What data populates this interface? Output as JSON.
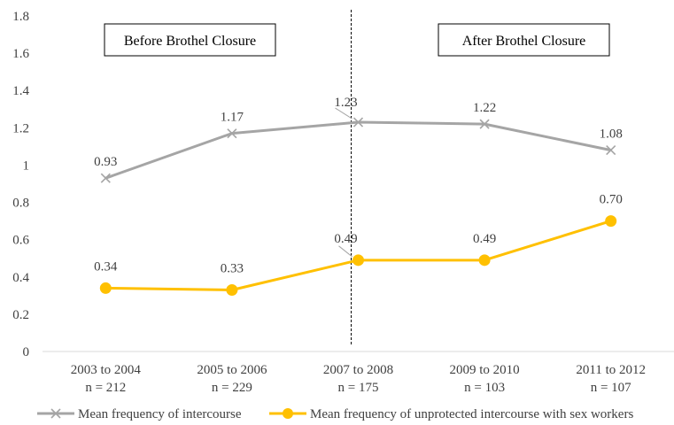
{
  "chart_data": {
    "type": "line",
    "categories": [
      [
        "2003 to 2004",
        "n = 212"
      ],
      [
        "2005 to 2006",
        "n = 229"
      ],
      [
        "2007 to 2008",
        "n = 175"
      ],
      [
        "2009 to 2010",
        "n = 103"
      ],
      [
        "2011 to 2012",
        "n = 107"
      ]
    ],
    "series": [
      {
        "name": "Mean frequency of intercourse",
        "values": [
          0.93,
          1.17,
          1.23,
          1.22,
          1.08
        ],
        "labels": [
          "0.93",
          "1.17",
          "1.23",
          "1.22",
          "1.08"
        ],
        "color": "#a5a5a5",
        "marker": "cross"
      },
      {
        "name": "Mean frequency of unprotected intercourse with sex workers",
        "values": [
          0.34,
          0.33,
          0.49,
          0.49,
          0.7
        ],
        "labels": [
          "0.34",
          "0.33",
          "0.49",
          "0.49",
          "0.70"
        ],
        "color": "#ffc000",
        "marker": "circle"
      }
    ],
    "ylim": [
      0,
      1.8
    ],
    "yticks": [
      "0",
      "0.2",
      "0.4",
      "0.6",
      "0.8",
      "1",
      "1.2",
      "1.4",
      "1.6",
      "1.8"
    ],
    "grid": false,
    "legend": "bottom",
    "annotations": {
      "before": "Before Brothel Closure",
      "after": "After Brothel Closure"
    }
  }
}
